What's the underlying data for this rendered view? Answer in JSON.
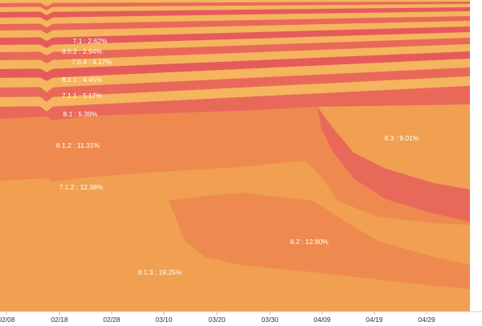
{
  "chart_data": {
    "type": "area",
    "title": "",
    "xlabel": "",
    "ylabel": "",
    "x_ticks": [
      "02/08",
      "02/18",
      "02/28",
      "03/10",
      "03/20",
      "03/30",
      "04/09",
      "04/19",
      "04/29"
    ],
    "band_labels": [
      {
        "name": "7.1",
        "value": "2.62%",
        "text": "7.1 : 2.62%"
      },
      {
        "name": "8.0.2",
        "value": "2.94%",
        "text": "8.0.2 : 2.94%"
      },
      {
        "name": "7.0.4",
        "value": "4.17%",
        "text": "7.0.4 : 4.17%"
      },
      {
        "name": "8.1.1",
        "value": "4.45%",
        "text": "8.1.1 : 4.45%"
      },
      {
        "name": "7.1.1",
        "value": "5.17%",
        "text": "7.1.1 : 5.17%"
      },
      {
        "name": "8.1",
        "value": "5.39%",
        "text": "8.1 : 5.39%"
      },
      {
        "name": "8.1.2",
        "value": "11.31%",
        "text": "8.1.2 : 11.31%"
      },
      {
        "name": "8.3",
        "value": "9.01%",
        "text": "8.3 : 9.01%"
      },
      {
        "name": "7.1.2",
        "value": "12.38%",
        "text": "7.1.2 : 12.38%"
      },
      {
        "name": "8.2",
        "value": "12.80%",
        "text": "8.2 : 12.80%"
      },
      {
        "name": "8.1.3",
        "value": "19.25%",
        "text": "8.1.3 : 19.25%"
      }
    ],
    "colors": {
      "light": "#f5b45e",
      "mid": "#f0a050",
      "orange": "#ee8a50",
      "dark": "#e8695a",
      "red": "#e55b5b"
    }
  }
}
